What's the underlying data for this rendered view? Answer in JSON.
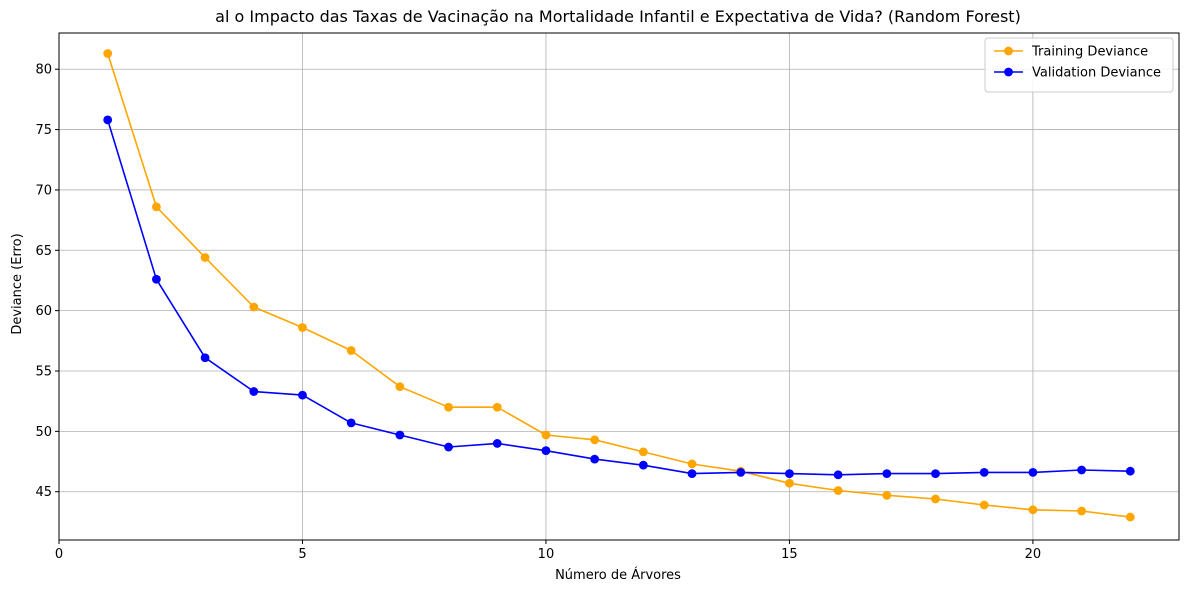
{
  "chart_data": {
    "type": "line",
    "title": "al o Impacto das Taxas de Vacinação na Mortalidade Infantil e Expectativa de Vida? (Random Forest)",
    "xlabel": "Número de Árvores",
    "ylabel": "Deviance (Erro)",
    "xlim": [
      0,
      23
    ],
    "ylim": [
      41,
      83
    ],
    "xticks": [
      0,
      5,
      10,
      15,
      20
    ],
    "yticks": [
      45,
      50,
      55,
      60,
      65,
      70,
      75,
      80
    ],
    "grid": true,
    "legend_position": "top-right",
    "x": [
      1,
      2,
      3,
      4,
      5,
      6,
      7,
      8,
      9,
      10,
      11,
      12,
      13,
      14,
      15,
      16,
      17,
      18,
      19,
      20,
      21,
      22
    ],
    "series": [
      {
        "name": "Training Deviance",
        "color": "#ffa500",
        "values": [
          81.3,
          68.6,
          64.4,
          60.3,
          58.6,
          56.7,
          53.7,
          52.0,
          52.0,
          49.7,
          49.3,
          48.3,
          47.3,
          46.7,
          45.7,
          45.1,
          44.7,
          44.4,
          43.9,
          43.5,
          43.4,
          42.9
        ]
      },
      {
        "name": "Validation Deviance",
        "color": "#0000ff",
        "values": [
          75.8,
          62.6,
          56.1,
          53.3,
          53.0,
          50.7,
          49.7,
          48.7,
          49.0,
          48.4,
          47.7,
          47.2,
          46.5,
          46.6,
          46.5,
          46.4,
          46.5,
          46.5,
          46.6,
          46.6,
          46.8,
          46.7
        ]
      }
    ]
  }
}
